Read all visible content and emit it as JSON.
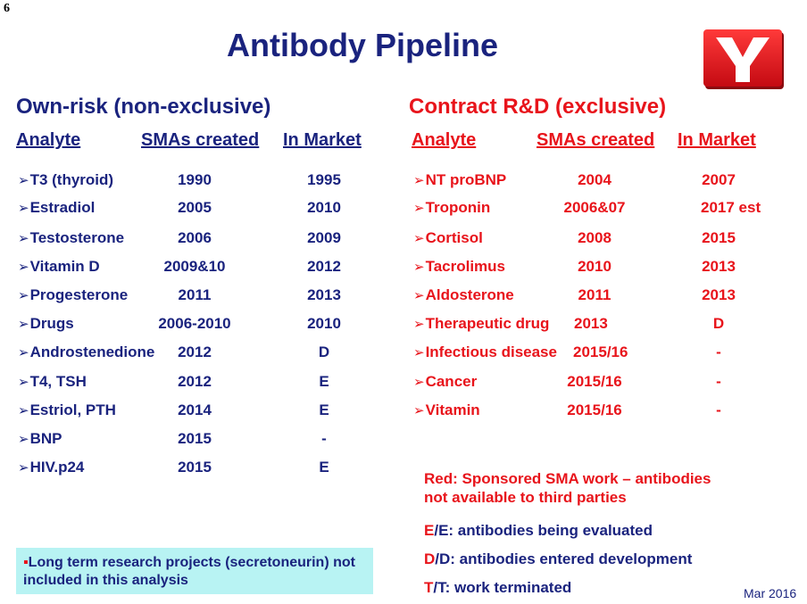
{
  "page_number": "6",
  "title": "Antibody Pipeline",
  "left": {
    "section_title": "Own-risk (non-exclusive)",
    "headers": [
      "Analyte",
      "SMAs created",
      "In Market"
    ],
    "rows": [
      [
        "T3 (thyroid)",
        "1990",
        "1995"
      ],
      [
        "Estradiol",
        "2005",
        "2010"
      ],
      [
        "Testosterone",
        "2006",
        "2009"
      ],
      [
        "Vitamin D",
        "2009&10",
        "2012"
      ],
      [
        "Progesterone",
        "2011",
        "2013"
      ],
      [
        "Drugs",
        "2006-2010",
        "2010"
      ],
      [
        "Androstenedione",
        "2012",
        "D"
      ],
      [
        "T4, TSH",
        "2012",
        "E"
      ],
      [
        "Estriol, PTH",
        "2014",
        "E"
      ],
      [
        "BNP",
        "2015",
        "-"
      ],
      [
        "HIV.p24",
        "2015",
        "E"
      ]
    ]
  },
  "right": {
    "section_title": "Contract R&D (exclusive)",
    "headers": [
      "Analyte",
      "SMAs created",
      "In Market"
    ],
    "rows": [
      [
        "NT proBNP",
        "2004",
        "2007"
      ],
      [
        "Troponin",
        "2006&07",
        "2017 est"
      ],
      [
        "Cortisol",
        "2008",
        "2015"
      ],
      [
        "Tacrolimus",
        "2010",
        "2013"
      ],
      [
        "Aldosterone",
        "2011",
        "2013"
      ],
      [
        "Therapeutic drug",
        "2013",
        "D"
      ],
      [
        "Infectious disease",
        "2015/16",
        "-"
      ],
      [
        "Cancer",
        "2015/16",
        "-"
      ],
      [
        "Vitamin",
        "2015/16",
        "-"
      ]
    ]
  },
  "note": {
    "bullet": "▪",
    "text": "Long term research projects (secretoneurin) not included in this analysis"
  },
  "legend": {
    "sponsored_line1": "Red: Sponsored SMA work – antibodies",
    "sponsored_line2": "not available to third parties",
    "items": [
      {
        "red": "E",
        "navy": "/E: antibodies being evaluated"
      },
      {
        "red": "D",
        "navy": "/D: antibodies entered development"
      },
      {
        "red": "T",
        "navy": "/T: work terminated"
      }
    ]
  },
  "date": "Mar 2016",
  "arrow_glyph": "➢",
  "colors": {
    "navy": "#1a237e",
    "red": "#e8141b",
    "note_bg": "#b8f3f3"
  }
}
